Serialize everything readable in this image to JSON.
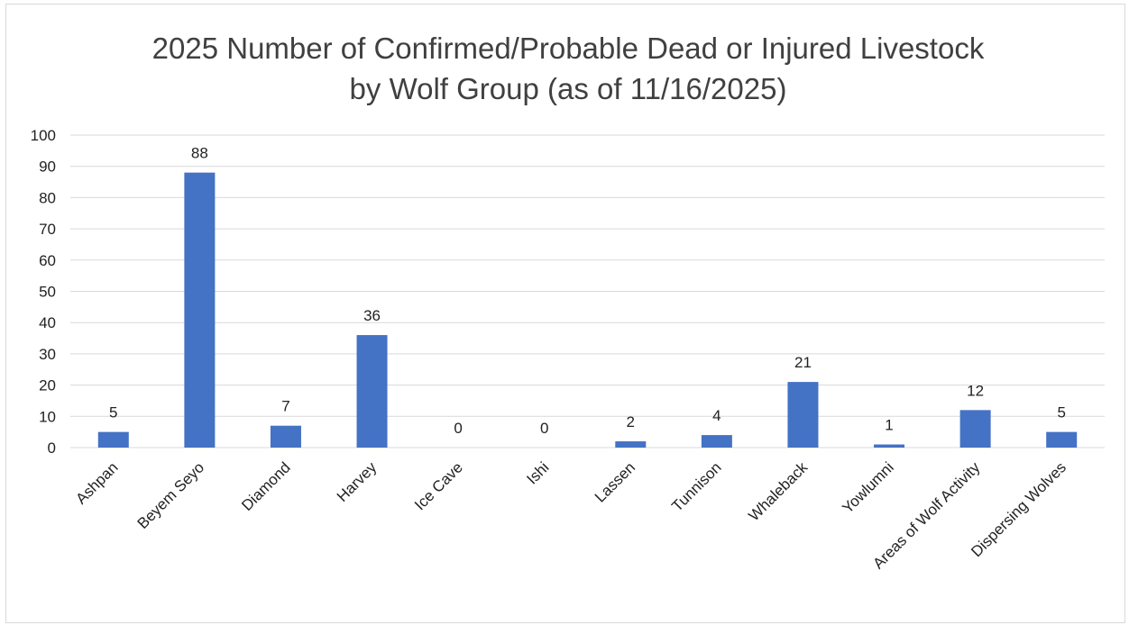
{
  "chart_data": {
    "type": "bar",
    "title": [
      "2025 Number of Confirmed/Probable Dead or Injured Livestock",
      "by Wolf Group (as of 11/16/2025)"
    ],
    "categories": [
      "Ashpan",
      "Beyem Seyo",
      "Diamond",
      "Harvey",
      "Ice Cave",
      "Ishi",
      "Lassen",
      "Tunnison",
      "Whaleback",
      "Yowlumni",
      "Areas of Wolf Activity",
      "Dispersing Wolves"
    ],
    "values": [
      5,
      88,
      7,
      36,
      0,
      0,
      2,
      4,
      21,
      1,
      12,
      5
    ],
    "ylim": [
      0,
      100
    ],
    "yticks": [
      0,
      10,
      20,
      30,
      40,
      50,
      60,
      70,
      80,
      90,
      100
    ],
    "grid": true,
    "legend": "none",
    "xlabel": "",
    "ylabel": "",
    "bar_color": "#4472C4",
    "grid_color": "#d9d9d9"
  }
}
